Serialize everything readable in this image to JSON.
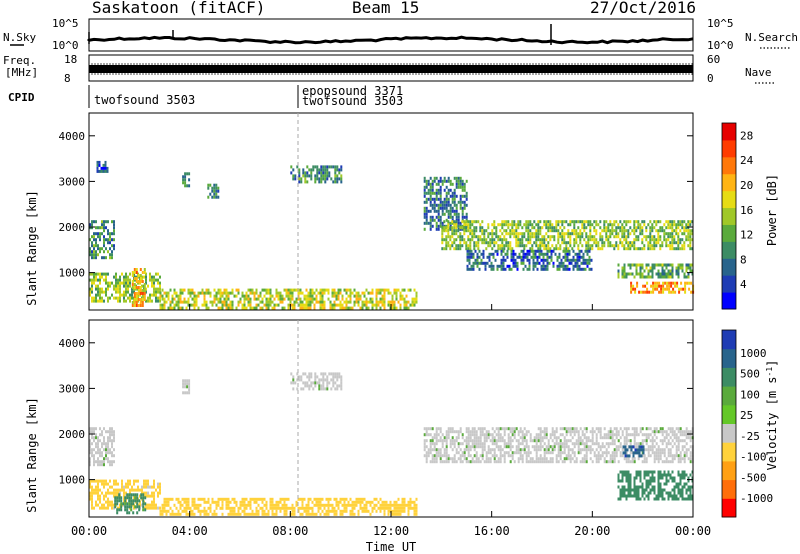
{
  "header": {
    "title": "Saskatoon (fitACF)",
    "beam": "Beam 15",
    "date": "27/Oct/2016"
  },
  "panels": {
    "nsky": {
      "left_label": "N.Sky",
      "right_label": "N.Search",
      "left_ticks": [
        "10^5",
        "10^0"
      ],
      "right_ticks": [
        "10^5",
        "10^0"
      ]
    },
    "freq": {
      "left_label_1": "Freq.",
      "left_label_2": "[MHz]",
      "right_label": "Nave",
      "left_ticks": [
        "18",
        "8"
      ],
      "right_ticks": [
        "60",
        "0"
      ]
    },
    "cpid": {
      "label": "CPID",
      "programs": [
        {
          "name": "twofsound",
          "id": "3503",
          "start_hour": 0
        },
        {
          "name": "epopsound",
          "id": "3371",
          "start_hour": 8.5
        },
        {
          "name": "twofsound",
          "id": "3503",
          "start_hour": 8.5
        }
      ]
    }
  },
  "chart_data": [
    {
      "type": "heatmap",
      "name": "Power",
      "ylabel": "Slant Range [km]",
      "yticks": [
        "1000",
        "2000",
        "3000",
        "4000"
      ],
      "ylim": [
        180,
        4500
      ],
      "xlim_hours": [
        0,
        24
      ],
      "colorbar": {
        "label": "Power [dB]",
        "ticks": [
          "28",
          "24",
          "20",
          "16",
          "12",
          "8",
          "4"
        ],
        "range": [
          0,
          30
        ],
        "colors": [
          "#0000ff",
          "#1e3cb4",
          "#28648c",
          "#3c8c64",
          "#5aaa3c",
          "#a0c828",
          "#e6dc14",
          "#ffb414",
          "#ff780a",
          "#ff3c00",
          "#e60000"
        ]
      },
      "echo_regions": [
        {
          "t0": 0.0,
          "t1": 1.0,
          "r0": 1350,
          "r1": 2150,
          "level": 10
        },
        {
          "t0": 0.3,
          "t1": 0.7,
          "r0": 3250,
          "r1": 3450,
          "level": 6
        },
        {
          "t0": 0.0,
          "t1": 2.8,
          "r0": 400,
          "r1": 1000,
          "level": 14
        },
        {
          "t0": 1.7,
          "t1": 2.2,
          "r0": 250,
          "r1": 1100,
          "level": 20
        },
        {
          "t0": 2.8,
          "t1": 13.0,
          "r0": 250,
          "r1": 650,
          "level": 16
        },
        {
          "t0": 3.7,
          "t1": 4.0,
          "r0": 2900,
          "r1": 3200,
          "level": 8
        },
        {
          "t0": 4.7,
          "t1": 5.1,
          "r0": 2650,
          "r1": 2950,
          "level": 9
        },
        {
          "t0": 8.0,
          "t1": 10.0,
          "r0": 3000,
          "r1": 3350,
          "level": 9
        },
        {
          "t0": 13.3,
          "t1": 15.0,
          "r0": 1950,
          "r1": 3100,
          "level": 8
        },
        {
          "t0": 14.0,
          "t1": 24.0,
          "r0": 1550,
          "r1": 2150,
          "level": 14
        },
        {
          "t0": 15.0,
          "t1": 20.0,
          "r0": 1100,
          "r1": 1500,
          "level": 7
        },
        {
          "t0": 21.0,
          "t1": 24.0,
          "r0": 900,
          "r1": 1200,
          "level": 12
        },
        {
          "t0": 21.5,
          "t1": 24.0,
          "r0": 550,
          "r1": 800,
          "level": 22
        }
      ]
    },
    {
      "type": "heatmap",
      "name": "Velocity",
      "ylabel": "Slant Range [km]",
      "yticks": [
        "1000",
        "2000",
        "3000",
        "4000"
      ],
      "ylim": [
        180,
        4500
      ],
      "xlim_hours": [
        0,
        24
      ],
      "xticks": [
        "00:00",
        "04:00",
        "08:00",
        "12:00",
        "16:00",
        "20:00",
        "00:00"
      ],
      "xlabel": "Time UT",
      "colorbar": {
        "label": "Velocity [m s-1]",
        "ticks": [
          "1000",
          "500",
          "100",
          "25",
          "-25",
          "-100",
          "-500",
          "-1000"
        ],
        "colors": [
          "#1e3cb4",
          "#28648c",
          "#3c8c64",
          "#5aaa3c",
          "#64c828",
          "#c8c8c8",
          "#ffd23c",
          "#ffa014",
          "#ff6e0a",
          "#ff0000"
        ]
      },
      "echo_regions": [
        {
          "t0": 0.0,
          "t1": 1.0,
          "r0": 1350,
          "r1": 2150,
          "level": 0
        },
        {
          "t0": 0.0,
          "t1": 2.8,
          "r0": 400,
          "r1": 1000,
          "level": -150
        },
        {
          "t0": 1.0,
          "t1": 2.2,
          "r0": 250,
          "r1": 700,
          "level": 150
        },
        {
          "t0": 2.8,
          "t1": 13.0,
          "r0": 250,
          "r1": 600,
          "level": -300
        },
        {
          "t0": 3.7,
          "t1": 4.0,
          "r0": 2900,
          "r1": 3200,
          "level": 0
        },
        {
          "t0": 8.0,
          "t1": 10.0,
          "r0": 3000,
          "r1": 3350,
          "level": 0
        },
        {
          "t0": 13.3,
          "t1": 24.0,
          "r0": 1400,
          "r1": 2150,
          "level": 0
        },
        {
          "t0": 21.0,
          "t1": 24.0,
          "r0": 600,
          "r1": 1200,
          "level": 300
        },
        {
          "t0": 21.2,
          "t1": 22.0,
          "r0": 1550,
          "r1": 1750,
          "level": 800
        }
      ]
    }
  ]
}
